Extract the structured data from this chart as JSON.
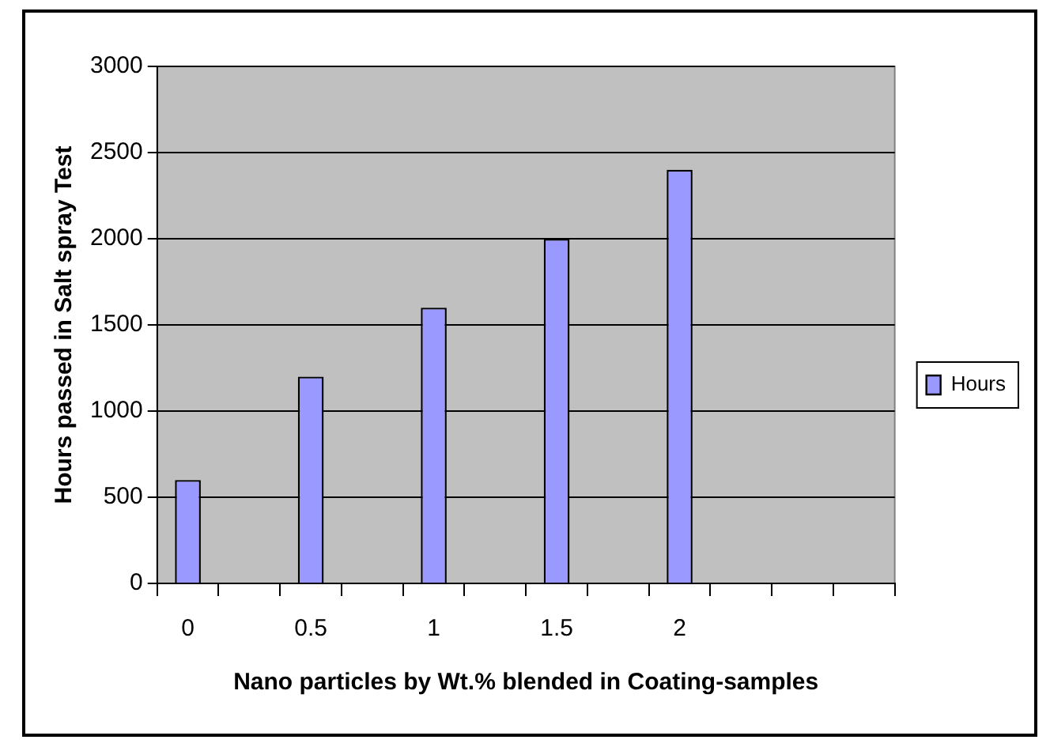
{
  "chart_data": {
    "type": "bar",
    "xlabel": "Nano particles by Wt.% blended in Coating-samples",
    "ylabel": "Hours passed in Salt spray Test",
    "categories": [
      "0",
      null,
      "0.5",
      null,
      "1",
      null,
      "1.5",
      null,
      "2",
      null,
      null,
      null
    ],
    "series": [
      {
        "name": "Hours",
        "color": "#9999ff",
        "values": [
          600,
          null,
          1200,
          null,
          1600,
          null,
          2000,
          null,
          2400,
          null,
          null,
          null
        ]
      }
    ],
    "ylim": [
      0,
      3000
    ],
    "yticks": [
      0,
      500,
      1000,
      1500,
      2000,
      2500,
      3000
    ],
    "grid": "y",
    "legend": "right"
  }
}
